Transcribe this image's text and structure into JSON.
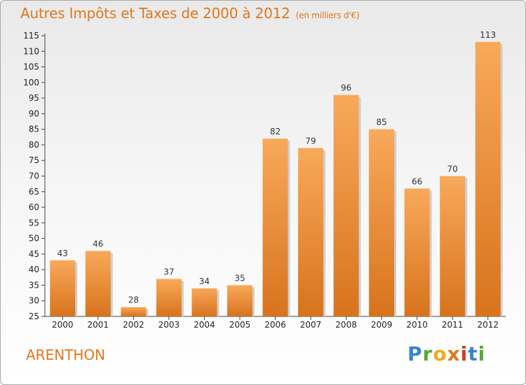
{
  "header": {
    "title": "Autres Impôts et Taxes de 2000 à 2012",
    "unit": "(en milliers d'€)"
  },
  "footer": {
    "place": "ARENTHON",
    "brand_letters": [
      "P",
      "r",
      "o",
      "x",
      "i",
      "t",
      "i"
    ]
  },
  "colors": {
    "bar_top": "#f8a95a",
    "bar_bottom": "#d8731d",
    "title": "#e0781e"
  },
  "chart_data": {
    "type": "bar",
    "title": "Autres Impôts et Taxes de 2000 à 2012",
    "subtitle": "(en milliers d'€)",
    "xlabel": "",
    "ylabel": "",
    "categories": [
      "2000",
      "2001",
      "2002",
      "2003",
      "2004",
      "2005",
      "2006",
      "2007",
      "2008",
      "2009",
      "2010",
      "2011",
      "2012"
    ],
    "values": [
      43,
      46,
      28,
      37,
      34,
      35,
      82,
      79,
      96,
      85,
      66,
      70,
      113
    ],
    "ylim": [
      25,
      115
    ],
    "yticks": [
      25,
      30,
      35,
      40,
      45,
      50,
      55,
      60,
      65,
      70,
      75,
      80,
      85,
      90,
      95,
      100,
      105,
      110,
      115
    ],
    "grid": false,
    "legend": "none"
  }
}
